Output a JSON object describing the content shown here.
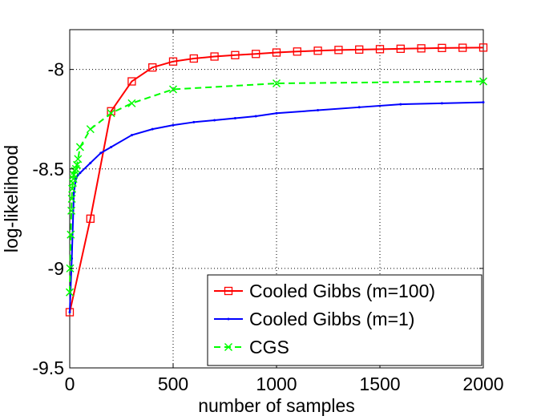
{
  "chart_data": {
    "type": "line",
    "title": "",
    "xlabel": "number of samples",
    "ylabel": "log-likelihood",
    "xlim": [
      0,
      2000
    ],
    "ylim": [
      -9.5,
      -7.8
    ],
    "xticks": [
      0,
      500,
      1000,
      1500,
      2000
    ],
    "xtick_labels": [
      "0",
      "500",
      "1000",
      "1500",
      "2000"
    ],
    "yticks": [
      -9.5,
      -9,
      -8.5,
      -8
    ],
    "ytick_labels": [
      "-9.5",
      "-9",
      "-8.5",
      "-8"
    ],
    "grid": true,
    "legend_position": "bottom-right",
    "series": [
      {
        "name": "Cooled Gibbs (m=100)",
        "color": "#ff0000",
        "line_style": "solid",
        "marker": "square",
        "x": [
          0,
          100,
          200,
          300,
          400,
          500,
          600,
          700,
          800,
          900,
          1000,
          1100,
          1200,
          1300,
          1400,
          1500,
          1600,
          1700,
          1800,
          1900,
          2000
        ],
        "y": [
          -9.22,
          -8.75,
          -8.21,
          -8.06,
          -7.99,
          -7.96,
          -7.945,
          -7.935,
          -7.928,
          -7.922,
          -7.915,
          -7.91,
          -7.906,
          -7.902,
          -7.9,
          -7.898,
          -7.896,
          -7.894,
          -7.892,
          -7.891,
          -7.89
        ]
      },
      {
        "name": "Cooled Gibbs (m=1)",
        "color": "#0000ff",
        "line_style": "solid",
        "marker": "point",
        "x": [
          0,
          10,
          20,
          30,
          40,
          50,
          100,
          150,
          200,
          300,
          400,
          500,
          600,
          700,
          800,
          900,
          1000,
          1200,
          1400,
          1600,
          1800,
          2000
        ],
        "y": [
          -9.22,
          -8.95,
          -8.62,
          -8.55,
          -8.53,
          -8.52,
          -8.47,
          -8.42,
          -8.39,
          -8.33,
          -8.3,
          -8.28,
          -8.265,
          -8.255,
          -8.245,
          -8.235,
          -8.22,
          -8.205,
          -8.19,
          -8.175,
          -8.17,
          -8.165
        ]
      },
      {
        "name": "CGS",
        "color": "#00ff00",
        "line_style": "dashed",
        "marker": "x",
        "x": [
          0,
          2,
          5,
          8,
          10,
          12,
          15,
          18,
          20,
          25,
          30,
          35,
          40,
          50,
          100,
          200,
          300,
          500,
          1000,
          2000
        ],
        "y": [
          -9.12,
          -9.0,
          -8.83,
          -8.71,
          -8.65,
          -8.6,
          -8.57,
          -8.55,
          -8.53,
          -8.51,
          -8.5,
          -8.48,
          -8.45,
          -8.39,
          -8.3,
          -8.22,
          -8.17,
          -8.1,
          -8.07,
          -8.06
        ]
      }
    ]
  }
}
